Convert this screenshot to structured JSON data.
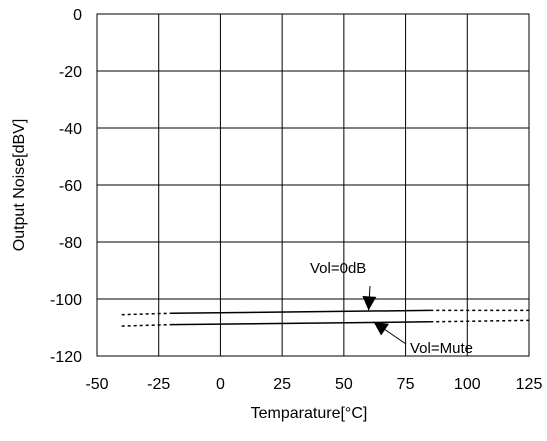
{
  "chart_data": {
    "type": "line",
    "xlabel": "Temparature[°C]",
    "ylabel": "Output Noise[dBV]",
    "xlim": [
      -50,
      125
    ],
    "ylim": [
      -120,
      0
    ],
    "x_ticks": [
      -50,
      -25,
      0,
      25,
      50,
      75,
      100,
      125
    ],
    "y_ticks": [
      0,
      -20,
      -40,
      -60,
      -80,
      -100,
      -120
    ],
    "x_tick_labels": [
      "-50",
      "-25",
      "0",
      "25",
      "50",
      "75",
      "100",
      "125"
    ],
    "y_tick_labels": [
      "0",
      "-20",
      "-40",
      "-60",
      "-80",
      "-100",
      "-120"
    ],
    "grid": true,
    "series": [
      {
        "name": "Vol=0dB",
        "solid": {
          "x": [
            -20,
            85
          ],
          "y": [
            -105,
            -104
          ]
        },
        "dashed_left": {
          "x": [
            -40,
            -20
          ],
          "y": [
            -105.5,
            -105
          ]
        },
        "dashed_right": {
          "x": [
            85,
            125
          ],
          "y": [
            -104,
            -104
          ]
        }
      },
      {
        "name": "Vol=Mute",
        "solid": {
          "x": [
            -20,
            85
          ],
          "y": [
            -109,
            -108
          ]
        },
        "dashed_left": {
          "x": [
            -40,
            -20
          ],
          "y": [
            -109.5,
            -109
          ]
        },
        "dashed_right": {
          "x": [
            85,
            125
          ],
          "y": [
            -108,
            -107.5
          ]
        }
      }
    ],
    "annotations": [
      {
        "text": "Vol=0dB",
        "arrow_to": {
          "x": 60,
          "y": -104
        }
      },
      {
        "text": "Vol=Mute",
        "arrow_to": {
          "x": 62,
          "y": -108
        }
      }
    ]
  }
}
